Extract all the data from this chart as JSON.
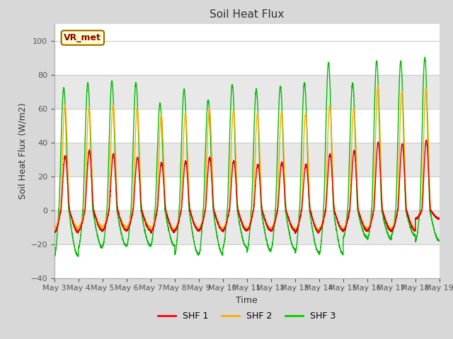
{
  "title": "Soil Heat Flux",
  "xlabel": "Time",
  "ylabel": "Soil Heat Flux (W/m2)",
  "ylim": [
    -40,
    110
  ],
  "yticks": [
    -40,
    -20,
    0,
    20,
    40,
    60,
    80,
    100
  ],
  "legend_labels": [
    "SHF 1",
    "SHF 2",
    "SHF 3"
  ],
  "legend_colors": [
    "#ff0000",
    "#ffaa00",
    "#00cc00"
  ],
  "annotation_text": "VR_met",
  "annotation_bg": "#ffffcc",
  "annotation_border": "#996600",
  "fig_bg": "#d8d8d8",
  "plot_bg": "#ffffff",
  "grid_color": "#cccccc",
  "shf1_color": "#dd0000",
  "shf2_color": "#ffaa00",
  "shf3_color": "#00bb00",
  "num_days": 16,
  "start_day": 3,
  "points_per_day": 288,
  "shf3_day_amps": [
    72,
    75,
    76,
    75,
    63,
    71,
    65,
    74,
    71,
    73,
    75,
    87,
    75,
    88,
    88,
    90
  ],
  "shf3_night_depths": [
    27,
    22,
    21,
    21,
    21,
    26,
    26,
    22,
    24,
    23,
    25,
    26,
    16,
    17,
    15,
    18
  ],
  "shf1_day_amps": [
    32,
    35,
    33,
    31,
    28,
    29,
    31,
    29,
    27,
    28,
    27,
    33,
    35,
    40,
    39,
    41
  ],
  "shf1_night_depths": [
    13,
    12,
    12,
    12,
    13,
    12,
    12,
    12,
    12,
    12,
    13,
    12,
    12,
    12,
    12,
    5
  ],
  "shf2_day_amps": [
    62,
    60,
    62,
    60,
    56,
    57,
    60,
    59,
    57,
    58,
    57,
    62,
    60,
    73,
    70,
    72
  ],
  "shf2_night_depths": [
    11,
    10,
    10,
    10,
    12,
    11,
    11,
    11,
    11,
    11,
    12,
    11,
    11,
    11,
    11,
    5
  ]
}
